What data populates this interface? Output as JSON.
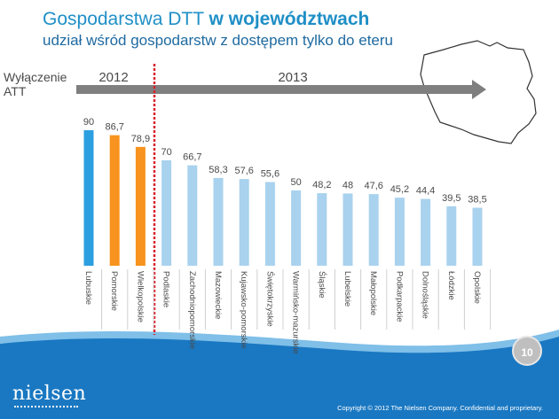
{
  "slide": {
    "title_regular": "Gospodarstwa DTT ",
    "title_bold": "w województwach",
    "subtitle": "udział wśród gospodarstw z dostępem tylko do eteru",
    "att_label": "Wyłączenie ATT",
    "page_number": "10",
    "logo": "nielsen",
    "copyright": "Copyright © 2012 The Nielsen Company. Confidential and proprietary."
  },
  "timeline": {
    "year_2012": "2012",
    "year_2013": "2013"
  },
  "colors": {
    "blue": "#2c9fe0",
    "orange": "#f7931e",
    "light_blue": "#a9d2ee",
    "arrow": "#7f7f7f",
    "divider": "#d9232e",
    "footer": "#1a78c2"
  },
  "chart_data": {
    "type": "bar",
    "title": "Gospodarstwa DTT w województwach",
    "subtitle": "udział wśród gospodarstw z dostępem tylko do eteru",
    "ylim": [
      0,
      100
    ],
    "grid": false,
    "categories": [
      "Lubuskie",
      "Pomorskie",
      "Wielkopolskie",
      "Podlaskie",
      "Zachodniopomorskie",
      "Mazowieckie",
      "Kujawsko-pomorskie",
      "Świętokrzyskie",
      "Warmińsko-mazurskie",
      "Śląskie",
      "Lubelskie",
      "Małopolskie",
      "Podkarpackie",
      "Dolnośląskie",
      "Łódzkie",
      "Opolskie"
    ],
    "values": [
      90,
      86.7,
      78.9,
      70,
      66.7,
      58.3,
      57.6,
      55.6,
      50,
      48.2,
      48,
      47.6,
      45.2,
      44.4,
      39.5,
      38.5
    ],
    "value_labels": [
      "90",
      "86,7",
      "78,9",
      "70",
      "66,7",
      "58,3",
      "57,6",
      "55,6",
      "50",
      "48,2",
      "48",
      "47,6",
      "45,2",
      "44,4",
      "39,5",
      "38,5"
    ],
    "bar_colors": [
      "blue",
      "orange",
      "orange",
      "light_blue",
      "light_blue",
      "light_blue",
      "light_blue",
      "light_blue",
      "light_blue",
      "light_blue",
      "light_blue",
      "light_blue",
      "light_blue",
      "light_blue",
      "light_blue",
      "light_blue"
    ],
    "groups": [
      {
        "label": "2012",
        "categories": [
          "Lubuskie",
          "Pomorskie",
          "Wielkopolskie"
        ]
      },
      {
        "label": "2013",
        "categories": [
          "Podlaskie",
          "Zachodniopomorskie",
          "Mazowieckie",
          "Kujawsko-pomorskie",
          "Świętokrzyskie",
          "Warmińsko-mazurskie",
          "Śląskie",
          "Lubelskie",
          "Małopolskie",
          "Podkarpackie",
          "Dolnośląskie",
          "Łódzkie",
          "Opolskie"
        ]
      }
    ]
  }
}
